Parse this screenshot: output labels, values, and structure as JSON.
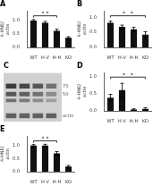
{
  "chart_data": [
    {
      "type": "bar",
      "title": "A",
      "categories": [
        "WT",
        "H-V",
        "H-H",
        "KO"
      ],
      "values": [
        1.0,
        0.92,
        0.62,
        0.36
      ],
      "errors": [
        0.04,
        0.05,
        0.06,
        0.04
      ],
      "ylabel": "4-HNE/\nactin",
      "color": "#111111",
      "ylim": [
        0,
        1.35
      ],
      "yticks": [
        {
          "value": 0,
          "label": "0.0"
        },
        0.5,
        {
          "value": 1.0,
          "label": "1.0"
        }
      ],
      "grid": false,
      "annotations": [
        {
          "text": "* *",
          "x": [
            "WT",
            "H-H"
          ],
          "y": 1.18
        }
      ]
    },
    {
      "type": "bar",
      "title": "B",
      "categories": [
        "WT",
        "H-V",
        "H-H",
        "KO"
      ],
      "values": [
        0.82,
        0.68,
        0.6,
        0.42
      ],
      "errors": [
        0.05,
        0.06,
        0.07,
        0.1
      ],
      "ylabel": "4-HNE/\nactin",
      "color": "#111111",
      "ylim": [
        0,
        1.2
      ],
      "yticks": [
        {
          "value": 0,
          "label": "0.0"
        },
        0.5,
        {
          "value": 1.0,
          "label": "1.0"
        }
      ],
      "grid": false,
      "annotations": [
        {
          "text": "*   *",
          "x": [
            "WT",
            "KO"
          ],
          "y": 1.05
        }
      ]
    },
    {
      "type": "blot",
      "title": "C",
      "annotations": [
        {
          "text": "75-"
        },
        {
          "text": "50-"
        },
        {
          "text": "actin"
        }
      ]
    },
    {
      "type": "bar",
      "title": "D",
      "categories": [
        "WT",
        "H-V",
        "H-H",
        "KO"
      ],
      "values": [
        0.38,
        0.6,
        0.04,
        0.06
      ],
      "errors": [
        0.1,
        0.2,
        0.02,
        0.03
      ],
      "ylabel": "4-HNE/\nactin",
      "color": "#111111",
      "ylim": [
        0,
        1.1
      ],
      "yticks": [
        {
          "value": 0,
          "label": "0.0"
        },
        0.5,
        {
          "value": 1.0,
          "label": "1.0"
        }
      ],
      "grid": false,
      "annotations": [
        {
          "text": "*   *",
          "x": [
            "WT",
            "KO"
          ],
          "y": 0.98
        }
      ]
    },
    {
      "type": "bar",
      "title": "E",
      "categories": [
        "WT",
        "H-V",
        "H-H",
        "KO"
      ],
      "values": [
        1.0,
        1.0,
        0.7,
        0.2
      ],
      "errors": [
        0.04,
        0.05,
        0.07,
        0.04
      ],
      "ylabel": "4-HNE/\nactin",
      "color": "#111111",
      "ylim": [
        0,
        1.35
      ],
      "yticks": [
        {
          "value": 0,
          "label": "0.0"
        },
        0.5,
        {
          "value": 1.0,
          "label": "1.0"
        }
      ],
      "grid": false,
      "annotations": [
        {
          "text": "* *",
          "x": [
            "WT",
            "H-H"
          ],
          "y": 1.18
        }
      ]
    }
  ]
}
